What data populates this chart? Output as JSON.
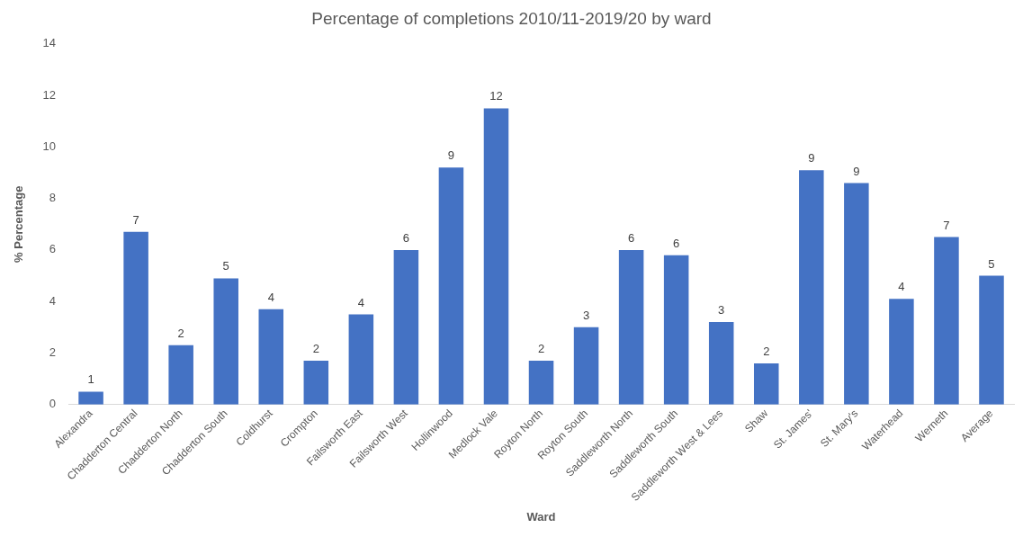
{
  "chart_data": {
    "type": "bar",
    "title": "Percentage of completions 2010/11-2019/20 by ward",
    "xlabel": "Ward",
    "ylabel": "% Percentage",
    "categories": [
      "Alexandra",
      "Chadderton Central",
      "Chadderton North",
      "Chadderton South",
      "Coldhurst",
      "Crompton",
      "Failsworth East",
      "Failsworth West",
      "Hollinwood",
      "Medlock Vale",
      "Royton North",
      "Royton South",
      "Saddleworth North",
      "Saddleworth South",
      "Saddleworth West & Lees",
      "Shaw",
      "St. James'",
      "St. Mary's",
      "Waterhead",
      "Werneth",
      "Average"
    ],
    "values": [
      0.5,
      6.7,
      2.3,
      4.9,
      3.7,
      1.7,
      3.5,
      6.0,
      9.2,
      11.5,
      1.7,
      3.0,
      6.0,
      5.8,
      3.2,
      1.6,
      9.1,
      8.6,
      4.1,
      6.5,
      5.0
    ],
    "value_labels": [
      "1",
      "7",
      "2",
      "5",
      "4",
      "2",
      "4",
      "6",
      "9",
      "12",
      "2",
      "3",
      "6",
      "6",
      "3",
      "2",
      "9",
      "9",
      "4",
      "7",
      "5"
    ],
    "color": "#4472c4",
    "ylim": [
      0,
      14
    ],
    "yticks": [
      0,
      2,
      4,
      6,
      8,
      10,
      12,
      14
    ],
    "grid": false,
    "legend": false
  }
}
